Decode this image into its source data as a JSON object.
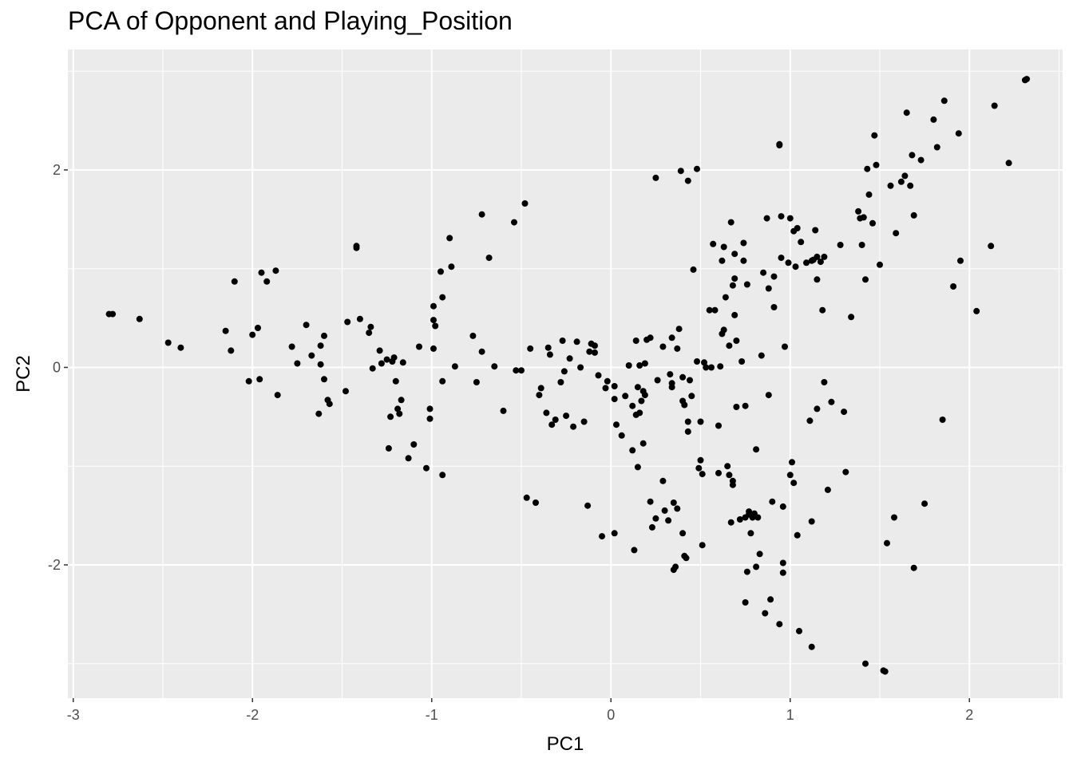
{
  "chart_data": {
    "type": "scatter",
    "title": "PCA of Opponent and Playing_Position",
    "xlabel": "PC1",
    "ylabel": "PC2",
    "xlim": [
      -3.03,
      2.52
    ],
    "ylim": [
      -3.35,
      3.22
    ],
    "x_ticks": [
      -3,
      -2,
      -1,
      0,
      1,
      2
    ],
    "x_tick_labels": [
      "-3",
      "-2",
      "-1",
      "0",
      "1",
      "2"
    ],
    "y_ticks": [
      -2,
      0,
      2
    ],
    "y_tick_labels": [
      "-2",
      "0",
      "2"
    ],
    "grid": true,
    "legend": "none",
    "colors": {
      "panel": "#ebebeb",
      "grid": "#ffffff",
      "point": "#000000",
      "tick_text": "#4d4d4d",
      "tick_mark": "#333333"
    },
    "points": [
      [
        -2.78,
        0.54
      ],
      [
        -2.8,
        0.54
      ],
      [
        -2.63,
        0.49
      ],
      [
        -2.47,
        0.25
      ],
      [
        -2.4,
        0.2
      ],
      [
        -2.15,
        0.37
      ],
      [
        -2.12,
        0.17
      ],
      [
        -2.1,
        0.87
      ],
      [
        -2.02,
        -0.14
      ],
      [
        -2.0,
        0.33
      ],
      [
        -1.97,
        0.4
      ],
      [
        -1.96,
        -0.12
      ],
      [
        -1.95,
        0.96
      ],
      [
        -1.92,
        0.87
      ],
      [
        -1.87,
        0.98
      ],
      [
        -1.86,
        -0.28
      ],
      [
        -1.78,
        0.21
      ],
      [
        -1.75,
        0.04
      ],
      [
        -1.7,
        0.43
      ],
      [
        -1.67,
        0.12
      ],
      [
        -1.63,
        -0.47
      ],
      [
        -1.62,
        0.22
      ],
      [
        -1.62,
        0.03
      ],
      [
        -1.6,
        0.32
      ],
      [
        -1.6,
        -0.12
      ],
      [
        -1.58,
        -0.33
      ],
      [
        -1.57,
        -0.37
      ],
      [
        -1.48,
        -0.24
      ],
      [
        -1.47,
        0.46
      ],
      [
        -1.42,
        1.21
      ],
      [
        -1.42,
        1.23
      ],
      [
        -1.4,
        0.49
      ],
      [
        -1.35,
        0.35
      ],
      [
        -1.34,
        0.41
      ],
      [
        -1.33,
        -0.01
      ],
      [
        -1.29,
        0.17
      ],
      [
        -1.28,
        0.04
      ],
      [
        -1.25,
        0.08
      ],
      [
        -1.24,
        -0.82
      ],
      [
        -1.23,
        -0.5
      ],
      [
        -1.22,
        0.06
      ],
      [
        -1.21,
        0.1
      ],
      [
        -1.2,
        -0.14
      ],
      [
        -1.19,
        -0.42
      ],
      [
        -1.18,
        -0.47
      ],
      [
        -1.17,
        -0.33
      ],
      [
        -1.16,
        0.05
      ],
      [
        -1.13,
        -0.92
      ],
      [
        -1.1,
        -0.78
      ],
      [
        -1.07,
        0.21
      ],
      [
        -1.03,
        -1.02
      ],
      [
        -1.01,
        -0.52
      ],
      [
        -1.01,
        -0.42
      ],
      [
        -0.99,
        0.62
      ],
      [
        -0.99,
        0.48
      ],
      [
        -0.99,
        0.19
      ],
      [
        -0.98,
        0.42
      ],
      [
        -0.95,
        0.97
      ],
      [
        -0.94,
        0.71
      ],
      [
        -0.94,
        -0.14
      ],
      [
        -0.94,
        -1.09
      ],
      [
        -0.9,
        1.31
      ],
      [
        -0.89,
        1.02
      ],
      [
        -0.87,
        0.01
      ],
      [
        -0.77,
        0.32
      ],
      [
        -0.75,
        -0.15
      ],
      [
        -0.72,
        0.16
      ],
      [
        -0.72,
        1.55
      ],
      [
        -0.68,
        1.11
      ],
      [
        -0.65,
        0.01
      ],
      [
        -0.6,
        -0.44
      ],
      [
        -0.54,
        1.47
      ],
      [
        -0.53,
        -0.03
      ],
      [
        -0.5,
        -0.03
      ],
      [
        -0.48,
        1.66
      ],
      [
        -0.47,
        -1.32
      ],
      [
        -0.45,
        0.19
      ],
      [
        -0.42,
        -1.37
      ],
      [
        -0.4,
        -0.28
      ],
      [
        -0.39,
        -0.21
      ],
      [
        -0.36,
        -0.46
      ],
      [
        -0.35,
        0.2
      ],
      [
        -0.34,
        0.13
      ],
      [
        -0.33,
        -0.58
      ],
      [
        -0.31,
        -0.53
      ],
      [
        -0.28,
        -0.15
      ],
      [
        -0.27,
        0.27
      ],
      [
        -0.26,
        -0.04
      ],
      [
        -0.25,
        -0.49
      ],
      [
        -0.23,
        0.09
      ],
      [
        -0.21,
        -0.6
      ],
      [
        -0.19,
        0.26
      ],
      [
        -0.17,
        0.0
      ],
      [
        -0.15,
        -0.55
      ],
      [
        -0.13,
        -1.4
      ],
      [
        -0.12,
        0.16
      ],
      [
        -0.11,
        0.24
      ],
      [
        -0.09,
        0.22
      ],
      [
        -0.09,
        0.15
      ],
      [
        -0.07,
        -0.08
      ],
      [
        -0.05,
        -1.71
      ],
      [
        -0.03,
        -0.21
      ],
      [
        -0.02,
        -0.14
      ],
      [
        0.02,
        -0.19
      ],
      [
        0.02,
        -0.32
      ],
      [
        0.02,
        -1.68
      ],
      [
        0.03,
        -0.58
      ],
      [
        0.06,
        -0.69
      ],
      [
        0.08,
        -0.29
      ],
      [
        0.1,
        0.02
      ],
      [
        0.12,
        -0.84
      ],
      [
        0.12,
        -0.39
      ],
      [
        0.13,
        -1.85
      ],
      [
        0.14,
        0.27
      ],
      [
        0.14,
        -0.48
      ],
      [
        0.15,
        -1.01
      ],
      [
        0.15,
        -0.2
      ],
      [
        0.16,
        -0.46
      ],
      [
        0.16,
        0.02
      ],
      [
        0.17,
        -0.34
      ],
      [
        0.18,
        -0.77
      ],
      [
        0.18,
        -0.24
      ],
      [
        0.19,
        -0.28
      ],
      [
        0.19,
        0.04
      ],
      [
        0.2,
        0.28
      ],
      [
        0.22,
        -1.36
      ],
      [
        0.22,
        0.3
      ],
      [
        0.23,
        -1.62
      ],
      [
        0.25,
        -1.53
      ],
      [
        0.25,
        1.92
      ],
      [
        0.26,
        -0.13
      ],
      [
        0.29,
        -1.15
      ],
      [
        0.29,
        0.21
      ],
      [
        0.3,
        -1.45
      ],
      [
        0.32,
        -1.55
      ],
      [
        0.33,
        -0.07
      ],
      [
        0.34,
        -0.2
      ],
      [
        0.34,
        -0.16
      ],
      [
        0.34,
        0.3
      ],
      [
        0.35,
        -2.05
      ],
      [
        0.35,
        -1.37
      ],
      [
        0.36,
        -2.02
      ],
      [
        0.37,
        -1.43
      ],
      [
        0.37,
        0.19
      ],
      [
        0.38,
        0.39
      ],
      [
        0.39,
        1.99
      ],
      [
        0.4,
        -1.68
      ],
      [
        0.4,
        -0.1
      ],
      [
        0.4,
        -0.34
      ],
      [
        0.41,
        -1.91
      ],
      [
        0.41,
        -0.38
      ],
      [
        0.42,
        -1.93
      ],
      [
        0.43,
        -0.55
      ],
      [
        0.43,
        -0.65
      ],
      [
        0.43,
        1.89
      ],
      [
        0.44,
        -0.13
      ],
      [
        0.45,
        -0.29
      ],
      [
        0.46,
        0.99
      ],
      [
        0.48,
        2.01
      ],
      [
        0.48,
        0.06
      ],
      [
        0.49,
        -1.02
      ],
      [
        0.5,
        -0.55
      ],
      [
        0.5,
        -0.94
      ],
      [
        0.51,
        -1.8
      ],
      [
        0.51,
        -1.08
      ],
      [
        0.52,
        0.05
      ],
      [
        0.53,
        0.0
      ],
      [
        0.55,
        0.58
      ],
      [
        0.56,
        0.0
      ],
      [
        0.57,
        1.25
      ],
      [
        0.58,
        0.58
      ],
      [
        0.6,
        -0.59
      ],
      [
        0.6,
        -1.07
      ],
      [
        0.61,
        0.01
      ],
      [
        0.62,
        1.08
      ],
      [
        0.62,
        0.34
      ],
      [
        0.63,
        1.22
      ],
      [
        0.63,
        0.38
      ],
      [
        0.64,
        0.71
      ],
      [
        0.65,
        -1.0
      ],
      [
        0.66,
        -1.09
      ],
      [
        0.66,
        0.22
      ],
      [
        0.67,
        -1.57
      ],
      [
        0.67,
        1.47
      ],
      [
        0.68,
        -1.19
      ],
      [
        0.68,
        0.83
      ],
      [
        0.68,
        -1.15
      ],
      [
        0.69,
        0.9
      ],
      [
        0.69,
        1.15
      ],
      [
        0.69,
        0.53
      ],
      [
        0.7,
        -0.4
      ],
      [
        0.7,
        0.27
      ],
      [
        0.72,
        -1.54
      ],
      [
        0.73,
        0.06
      ],
      [
        0.74,
        1.08
      ],
      [
        0.74,
        1.26
      ],
      [
        0.75,
        -1.52
      ],
      [
        0.75,
        -2.38
      ],
      [
        0.75,
        -0.39
      ],
      [
        0.76,
        -2.07
      ],
      [
        0.76,
        0.84
      ],
      [
        0.77,
        -1.46
      ],
      [
        0.77,
        -1.49
      ],
      [
        0.78,
        -1.68
      ],
      [
        0.79,
        -1.52
      ],
      [
        0.8,
        -1.48
      ],
      [
        0.81,
        -2.02
      ],
      [
        0.81,
        -0.83
      ],
      [
        0.82,
        -1.52
      ],
      [
        0.83,
        -1.89
      ],
      [
        0.84,
        0.12
      ],
      [
        0.85,
        0.96
      ],
      [
        0.86,
        -2.49
      ],
      [
        0.87,
        1.51
      ],
      [
        0.88,
        0.8
      ],
      [
        0.88,
        -0.28
      ],
      [
        0.89,
        -2.35
      ],
      [
        0.9,
        -1.36
      ],
      [
        0.91,
        0.92
      ],
      [
        0.91,
        0.61
      ],
      [
        0.94,
        -2.6
      ],
      [
        0.94,
        2.26
      ],
      [
        0.94,
        2.25
      ],
      [
        0.95,
        1.53
      ],
      [
        0.95,
        1.11
      ],
      [
        0.96,
        -1.41
      ],
      [
        0.96,
        -2.08
      ],
      [
        0.96,
        -1.98
      ],
      [
        0.97,
        0.21
      ],
      [
        0.99,
        1.06
      ],
      [
        1.0,
        1.51
      ],
      [
        1.0,
        -1.09
      ],
      [
        1.01,
        -0.96
      ],
      [
        1.02,
        1.38
      ],
      [
        1.02,
        -1.17
      ],
      [
        1.03,
        1.02
      ],
      [
        1.04,
        -1.7
      ],
      [
        1.04,
        1.41
      ],
      [
        1.05,
        -2.67
      ],
      [
        1.06,
        1.27
      ],
      [
        1.09,
        1.06
      ],
      [
        1.11,
        -0.54
      ],
      [
        1.12,
        1.08
      ],
      [
        1.12,
        -2.83
      ],
      [
        1.12,
        -1.56
      ],
      [
        1.13,
        1.09
      ],
      [
        1.14,
        1.39
      ],
      [
        1.15,
        0.89
      ],
      [
        1.15,
        1.12
      ],
      [
        1.15,
        -0.42
      ],
      [
        1.17,
        1.07
      ],
      [
        1.18,
        0.58
      ],
      [
        1.19,
        1.12
      ],
      [
        1.19,
        -0.15
      ],
      [
        1.21,
        -1.24
      ],
      [
        1.23,
        -0.35
      ],
      [
        1.28,
        1.24
      ],
      [
        1.3,
        -0.45
      ],
      [
        1.31,
        -1.06
      ],
      [
        1.34,
        0.51
      ],
      [
        1.38,
        1.58
      ],
      [
        1.39,
        1.51
      ],
      [
        1.4,
        1.24
      ],
      [
        1.41,
        1.52
      ],
      [
        1.42,
        0.89
      ],
      [
        1.42,
        -3.0
      ],
      [
        1.43,
        2.01
      ],
      [
        1.44,
        1.75
      ],
      [
        1.46,
        1.46
      ],
      [
        1.47,
        2.35
      ],
      [
        1.48,
        2.05
      ],
      [
        1.5,
        1.04
      ],
      [
        1.52,
        -3.07
      ],
      [
        1.53,
        -3.08
      ],
      [
        1.54,
        -1.78
      ],
      [
        1.56,
        1.84
      ],
      [
        1.58,
        -1.52
      ],
      [
        1.59,
        1.36
      ],
      [
        1.62,
        1.88
      ],
      [
        1.64,
        1.94
      ],
      [
        1.65,
        2.58
      ],
      [
        1.67,
        1.84
      ],
      [
        1.68,
        2.15
      ],
      [
        1.69,
        -2.03
      ],
      [
        1.69,
        1.54
      ],
      [
        1.73,
        2.1
      ],
      [
        1.75,
        -1.38
      ],
      [
        1.8,
        2.51
      ],
      [
        1.82,
        2.23
      ],
      [
        1.85,
        -0.53
      ],
      [
        1.86,
        2.7
      ],
      [
        1.91,
        0.82
      ],
      [
        1.94,
        2.37
      ],
      [
        1.95,
        1.08
      ],
      [
        2.04,
        0.57
      ],
      [
        2.12,
        1.23
      ],
      [
        2.14,
        2.65
      ],
      [
        2.22,
        2.07
      ],
      [
        2.31,
        2.91
      ],
      [
        2.32,
        2.92
      ]
    ]
  }
}
